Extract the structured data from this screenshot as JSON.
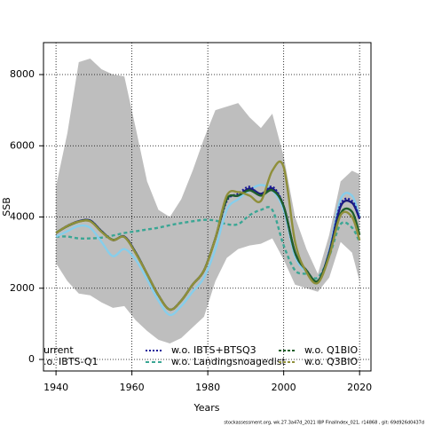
{
  "chart_data": {
    "type": "line",
    "x_label": "Years",
    "y_label": "SSB",
    "footer": "stockassessment.org, wk.27.3a47d_2021 IBP FinalIndex_021, r14868 , git: 69d926d0437d",
    "x": [
      1940,
      1943,
      1946,
      1949,
      1952,
      1955,
      1958,
      1961,
      1964,
      1967,
      1970,
      1973,
      1976,
      1979,
      1982,
      1985,
      1988,
      1991,
      1994,
      1997,
      2000,
      2003,
      2006,
      2009,
      2012,
      2015,
      2018,
      2020
    ],
    "band": {
      "color": "#bebebe",
      "upper": [
        4860,
        6360,
        8350,
        8450,
        8150,
        8000,
        7950,
        6500,
        5000,
        4200,
        4000,
        4500,
        5300,
        6200,
        7000,
        7100,
        7200,
        6800,
        6500,
        6900,
        5700,
        4000,
        3100,
        2400,
        3500,
        5000,
        5300,
        5200
      ],
      "lower": [
        2700,
        2200,
        1850,
        1800,
        1600,
        1450,
        1500,
        1100,
        800,
        550,
        450,
        600,
        900,
        1200,
        2200,
        2850,
        3100,
        3200,
        3250,
        3400,
        2800,
        2100,
        2000,
        1900,
        2300,
        3300,
        3000,
        2200
      ]
    },
    "series": [
      {
        "name": "w.o. Landingsnoagedist",
        "color": "#3aa694",
        "dash": "4,3",
        "values": [
          3450,
          3450,
          3400,
          3400,
          3420,
          3480,
          3550,
          3600,
          3650,
          3700,
          3770,
          3830,
          3880,
          3920,
          3900,
          3800,
          3800,
          4050,
          4200,
          4200,
          3200,
          2500,
          2400,
          2300,
          2900,
          3800,
          3700,
          3300
        ]
      },
      {
        "name": ".o. IBTS-Q1",
        "color": "#87ceeb",
        "dash": "none",
        "values": [
          3450,
          3600,
          3750,
          3700,
          3300,
          2900,
          3100,
          2800,
          2250,
          1650,
          1250,
          1500,
          1900,
          2300,
          3100,
          4200,
          4500,
          4750,
          4900,
          4750,
          4200,
          2900,
          2450,
          2150,
          3050,
          4500,
          4600,
          4000
        ]
      },
      {
        "name": "urrent",
        "color": "#1a1a7a",
        "dash": "none",
        "values": [
          3550,
          3750,
          3880,
          3900,
          3600,
          3350,
          3450,
          3000,
          2400,
          1800,
          1400,
          1650,
          2100,
          2500,
          3400,
          4500,
          4600,
          4800,
          4650,
          4800,
          4300,
          3000,
          2500,
          2200,
          3000,
          4300,
          4400,
          3950
        ]
      },
      {
        "name": "w.o. IBTS+BTSQ3",
        "color": "#1a1a9a",
        "dash": "2,2",
        "values": [
          3550,
          3750,
          3880,
          3900,
          3600,
          3350,
          3450,
          3000,
          2400,
          1800,
          1400,
          1650,
          2100,
          2500,
          3400,
          4450,
          4650,
          4850,
          4600,
          4850,
          4300,
          3000,
          2500,
          2200,
          3000,
          4350,
          4450,
          3950
        ]
      },
      {
        "name": "w.o. Q1BIO",
        "color": "#1f5f2a",
        "dash": "none",
        "values": [
          3560,
          3740,
          3870,
          3890,
          3590,
          3360,
          3440,
          2990,
          2400,
          1800,
          1400,
          1650,
          2100,
          2500,
          3400,
          4500,
          4600,
          4750,
          4600,
          4750,
          4300,
          3000,
          2500,
          2200,
          2950,
          4100,
          4150,
          3500
        ]
      },
      {
        "name": "w.o. Q3BIO",
        "color": "#8f8f3a",
        "dash": "none",
        "values": [
          3550,
          3750,
          3870,
          3880,
          3580,
          3350,
          3440,
          2980,
          2400,
          1800,
          1400,
          1650,
          2100,
          2500,
          3400,
          4600,
          4700,
          4600,
          4450,
          5300,
          5400,
          3300,
          2450,
          2150,
          2900,
          4050,
          4000,
          3350
        ]
      }
    ],
    "xlim": [
      1936.7,
      2023.0
    ],
    "xticks": [
      1940,
      1960,
      1980,
      2000,
      2020
    ],
    "ylim": [
      -324,
      8898
    ],
    "yticks": [
      0,
      2000,
      4000,
      6000,
      8000
    ],
    "grid": true
  }
}
